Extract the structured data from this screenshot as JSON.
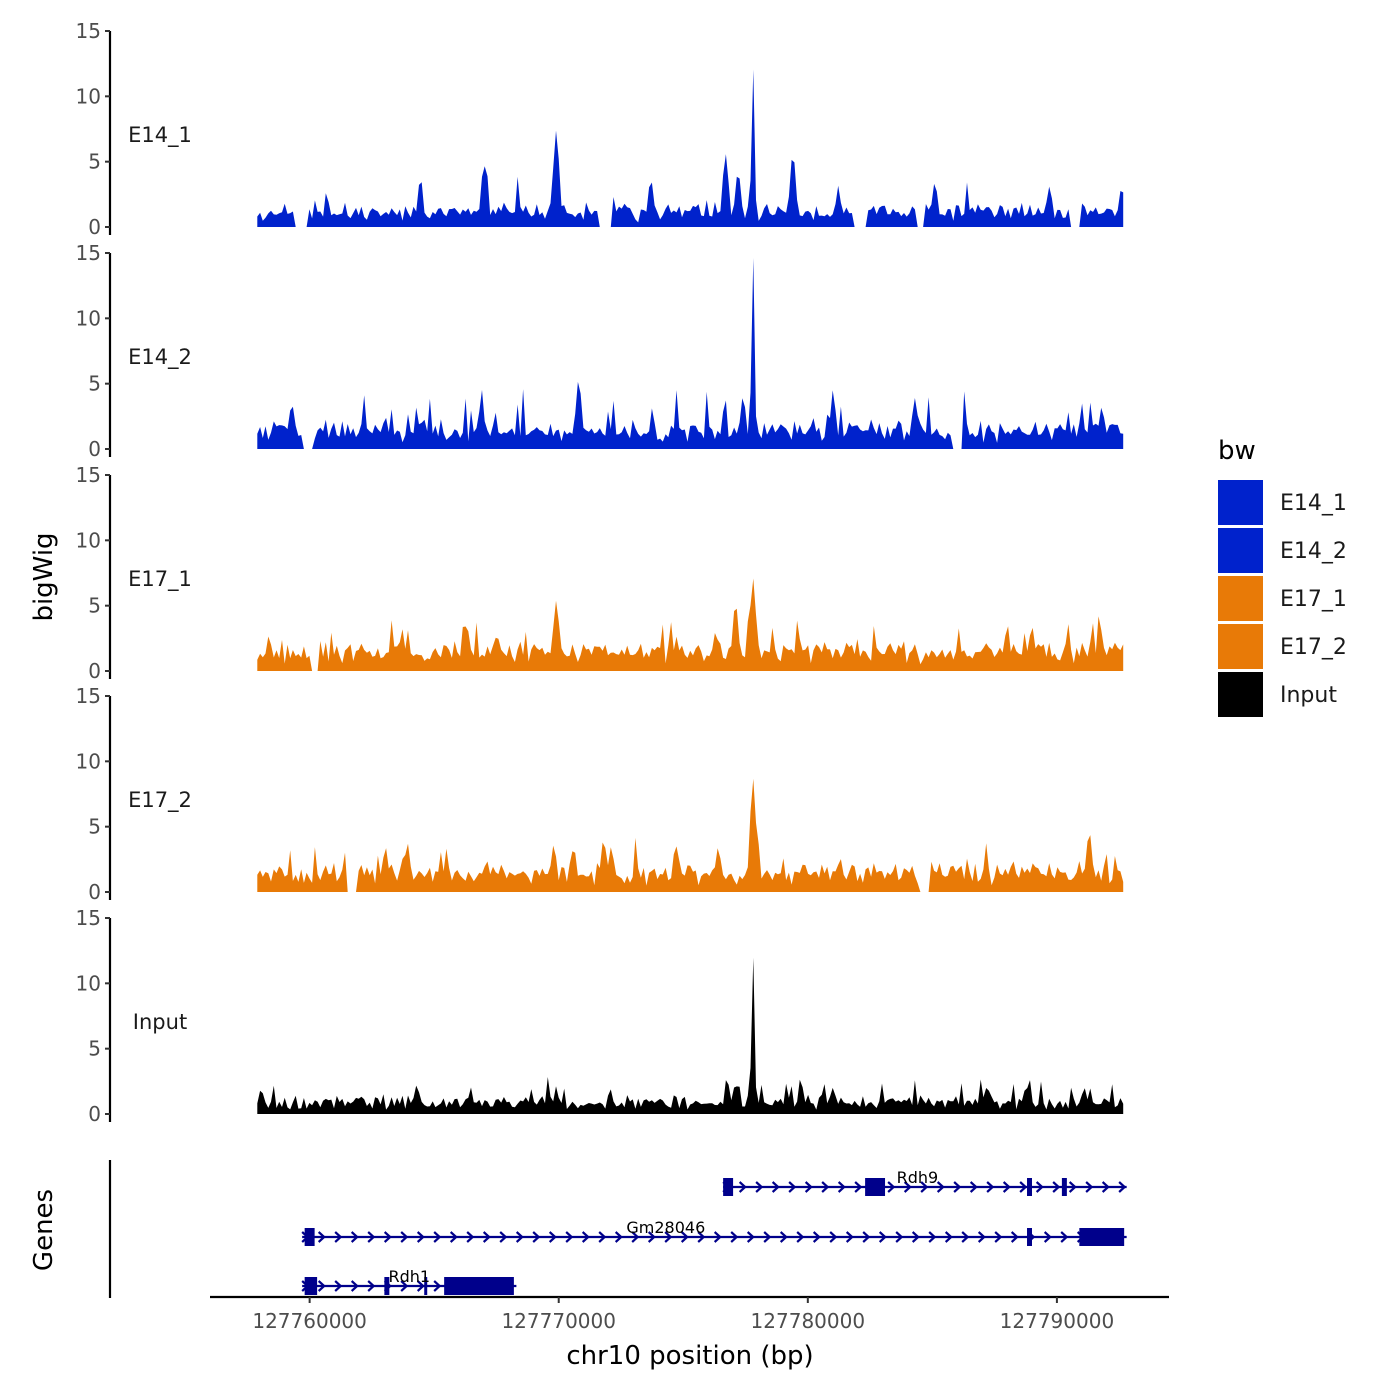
{
  "chart_data": {
    "type": "area",
    "title": "",
    "ylabel": "bigWig",
    "genes_ylabel": "Genes",
    "xlabel": "chr10 position (bp)",
    "xlim": [
      127756000,
      127794500
    ],
    "data_range": [
      127757900,
      127792700
    ],
    "ylim": [
      0,
      15
    ],
    "y_ticks": [
      "0",
      "5",
      "10",
      "15"
    ],
    "x_ticks": [
      {
        "value": 127760000,
        "label": "127760000"
      },
      {
        "value": 127770000,
        "label": "127770000"
      },
      {
        "value": 127780000,
        "label": "127780000"
      },
      {
        "value": 127790000,
        "label": "127790000"
      }
    ],
    "legend": {
      "title": "bw",
      "position": "right",
      "items": [
        {
          "label": "E14_1",
          "color": "#0022CC"
        },
        {
          "label": "E14_2",
          "color": "#0022CC"
        },
        {
          "label": "E17_1",
          "color": "#E87A07"
        },
        {
          "label": "E17_2",
          "color": "#E87A07"
        },
        {
          "label": "Input",
          "color": "#000000"
        }
      ]
    },
    "series": [
      {
        "name": "E14_1",
        "color": "#0022CC",
        "baseline": 0.9,
        "noise": 1.4,
        "seed": 11,
        "gaps": [
          [
            127759400,
            127759900
          ],
          [
            127771600,
            127772100
          ],
          [
            127781800,
            127782400
          ],
          [
            127784400,
            127784700
          ],
          [
            127790500,
            127790900
          ]
        ],
        "peaks": [
          {
            "x": 127767000,
            "y": 4.8
          },
          {
            "x": 127769900,
            "y": 7.4
          },
          {
            "x": 127773700,
            "y": 3.6
          },
          {
            "x": 127776700,
            "y": 5.6
          },
          {
            "x": 127777200,
            "y": 4.2
          },
          {
            "x": 127777800,
            "y": 12.2
          },
          {
            "x": 127779400,
            "y": 5.6
          },
          {
            "x": 127785100,
            "y": 3.4
          },
          {
            "x": 127789700,
            "y": 3.1
          },
          {
            "x": 127792600,
            "y": 3.0
          }
        ]
      },
      {
        "name": "E14_2",
        "color": "#0022CC",
        "baseline": 1.1,
        "noise": 1.6,
        "seed": 23,
        "gaps": [
          [
            127759700,
            127760200
          ],
          [
            127785800,
            127786200
          ]
        ],
        "peaks": [
          {
            "x": 127766900,
            "y": 3.8
          },
          {
            "x": 127770800,
            "y": 5.3
          },
          {
            "x": 127777400,
            "y": 4.0
          },
          {
            "x": 127777800,
            "y": 14.8
          },
          {
            "x": 127781000,
            "y": 3.6
          },
          {
            "x": 127784300,
            "y": 3.9
          },
          {
            "x": 127791800,
            "y": 3.2
          }
        ]
      },
      {
        "name": "E17_1",
        "color": "#E87A07",
        "baseline": 1.3,
        "noise": 1.3,
        "seed": 37,
        "gaps": [
          [
            127760100,
            127760400
          ]
        ],
        "peaks": [
          {
            "x": 127766300,
            "y": 3.6
          },
          {
            "x": 127769900,
            "y": 5.4
          },
          {
            "x": 127776300,
            "y": 3.0
          },
          {
            "x": 127777100,
            "y": 5.2
          },
          {
            "x": 127777800,
            "y": 7.1
          },
          {
            "x": 127788000,
            "y": 3.2
          },
          {
            "x": 127789000,
            "y": 3.4
          }
        ]
      },
      {
        "name": "E17_2",
        "color": "#E87A07",
        "baseline": 1.2,
        "noise": 1.4,
        "seed": 51,
        "gaps": [
          [
            127761500,
            127761900
          ],
          [
            127784500,
            127784900
          ]
        ],
        "peaks": [
          {
            "x": 127763800,
            "y": 3.0
          },
          {
            "x": 127769800,
            "y": 3.6
          },
          {
            "x": 127770600,
            "y": 3.4
          },
          {
            "x": 127771800,
            "y": 4.0
          },
          {
            "x": 127774700,
            "y": 3.6
          },
          {
            "x": 127776400,
            "y": 3.4
          },
          {
            "x": 127777800,
            "y": 8.7
          },
          {
            "x": 127781300,
            "y": 2.6
          },
          {
            "x": 127791300,
            "y": 4.6
          }
        ]
      },
      {
        "name": "Input",
        "color": "#000000",
        "baseline": 0.75,
        "noise": 0.9,
        "seed": 67,
        "gaps": [],
        "peaks": [
          {
            "x": 127764300,
            "y": 2.2
          },
          {
            "x": 127777100,
            "y": 2.3
          },
          {
            "x": 127777800,
            "y": 12.1
          },
          {
            "x": 127781000,
            "y": 2.0
          },
          {
            "x": 127787200,
            "y": 2.1
          },
          {
            "x": 127788800,
            "y": 2.0
          },
          {
            "x": 127791100,
            "y": 2.0
          }
        ]
      }
    ],
    "genes": [
      {
        "name": "Rdh9",
        "start": 127776600,
        "end": 127792800,
        "row": 0,
        "label_x": 127784400,
        "exons": [
          [
            127776600,
            127777000
          ],
          [
            127782300,
            127783100
          ],
          [
            127788800,
            127789000
          ],
          [
            127790200,
            127790400
          ]
        ]
      },
      {
        "name": "Gm28046",
        "start": 127759700,
        "end": 127792800,
        "row": 1,
        "label_x": 127774300,
        "exons": [
          [
            127759800,
            127760200
          ],
          [
            127788800,
            127789000
          ],
          [
            127790900,
            127792700
          ]
        ]
      },
      {
        "name": "Rdh1",
        "start": 127759700,
        "end": 127768300,
        "row": 2,
        "label_x": 127764000,
        "exons": [
          [
            127759800,
            127760300
          ],
          [
            127763000,
            127763200
          ],
          [
            127764600,
            127764700
          ],
          [
            127765400,
            127768200
          ]
        ]
      }
    ]
  }
}
